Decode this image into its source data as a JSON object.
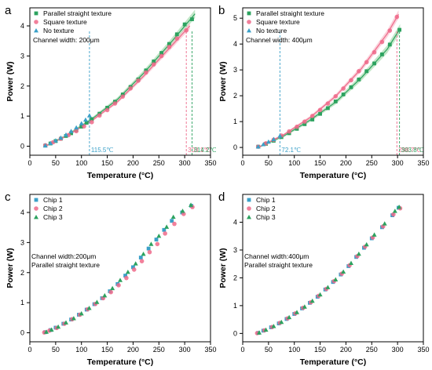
{
  "colors": {
    "green": "#2ca25f",
    "pink": "#ee6a8a",
    "blue": "#3aa0c8",
    "band_green": "#8fd49b",
    "band_pink": "#f7a9bb"
  },
  "chart_data": [
    {
      "panel": "a",
      "type": "scatter",
      "xlabel": "Temperature (°C)",
      "ylabel": "Power (W)",
      "xlim": [
        0,
        350
      ],
      "ylim": [
        -0.3,
        4.6
      ],
      "xticks": [
        0,
        50,
        100,
        150,
        200,
        250,
        300,
        350
      ],
      "yticks": [
        0,
        1,
        2,
        3,
        4
      ],
      "legend_position": "top-left",
      "annotation": "Channel width: 200μm",
      "series": [
        {
          "name": "Parallel straight texture",
          "color": "green",
          "marker": "square",
          "x": [
            30,
            40,
            50,
            60,
            70,
            80,
            90,
            100,
            110,
            120,
            135,
            150,
            165,
            180,
            195,
            210,
            225,
            240,
            255,
            270,
            285,
            300,
            314.2
          ],
          "y": [
            0.02,
            0.09,
            0.17,
            0.25,
            0.34,
            0.43,
            0.53,
            0.65,
            0.78,
            0.9,
            1.08,
            1.28,
            1.48,
            1.72,
            1.97,
            2.22,
            2.52,
            2.82,
            3.1,
            3.4,
            3.72,
            4.05,
            4.22
          ]
        },
        {
          "name": "Square texture",
          "color": "pink",
          "marker": "circle",
          "x": [
            30,
            45,
            60,
            75,
            90,
            105,
            120,
            135,
            150,
            165,
            180,
            195,
            210,
            225,
            240,
            255,
            270,
            285,
            303.1
          ],
          "y": [
            0.03,
            0.13,
            0.25,
            0.37,
            0.5,
            0.66,
            0.8,
            1.02,
            1.2,
            1.42,
            1.65,
            1.92,
            2.18,
            2.45,
            2.72,
            3.0,
            3.3,
            3.58,
            3.85
          ]
        },
        {
          "name": "No texture",
          "color": "blue",
          "marker": "triangle",
          "x": [
            30,
            40,
            50,
            60,
            70,
            80,
            90,
            100,
            108,
            115.5
          ],
          "y": [
            0.02,
            0.1,
            0.19,
            0.28,
            0.38,
            0.5,
            0.62,
            0.76,
            0.88,
            1.02
          ]
        }
      ],
      "fits": [
        {
          "color": "green",
          "x": [
            30,
            70,
            120,
            170,
            220,
            270,
            320
          ],
          "y": [
            0.0,
            0.34,
            0.9,
            1.56,
            2.42,
            3.38,
            4.4
          ],
          "band": 0.1
        },
        {
          "color": "pink",
          "x": [
            30,
            70,
            120,
            170,
            220,
            270,
            310
          ],
          "y": [
            0.0,
            0.33,
            0.85,
            1.48,
            2.32,
            3.25,
            4.0
          ],
          "band": 0.08
        }
      ],
      "markers": [
        {
          "x": 115.5,
          "label": "115.5℃",
          "color": "blue"
        },
        {
          "x": 303.1,
          "label": "303.1℃",
          "color": "pink"
        },
        {
          "x": 314.2,
          "label": "314.2℃",
          "color": "green"
        }
      ]
    },
    {
      "panel": "b",
      "type": "scatter",
      "xlabel": "Temperature (°C)",
      "ylabel": "Power (W)",
      "xlim": [
        0,
        350
      ],
      "ylim": [
        -0.3,
        5.4
      ],
      "xticks": [
        0,
        50,
        100,
        150,
        200,
        250,
        300,
        350
      ],
      "yticks": [
        0,
        1,
        2,
        3,
        4,
        5
      ],
      "legend_position": "top-left",
      "annotation": "Channel width: 400μm",
      "series": [
        {
          "name": "Parallel straight texture",
          "color": "green",
          "marker": "square",
          "x": [
            30,
            45,
            60,
            75,
            90,
            105,
            120,
            135,
            150,
            165,
            180,
            195,
            210,
            225,
            240,
            255,
            270,
            285,
            303.8
          ],
          "y": [
            0.03,
            0.14,
            0.26,
            0.4,
            0.55,
            0.72,
            0.9,
            1.08,
            1.3,
            1.52,
            1.78,
            2.05,
            2.33,
            2.63,
            2.95,
            3.25,
            3.6,
            3.98,
            4.55
          ]
        },
        {
          "name": "Square texture",
          "color": "pink",
          "marker": "circle",
          "x": [
            30,
            45,
            60,
            75,
            90,
            105,
            120,
            135,
            150,
            165,
            180,
            195,
            210,
            225,
            240,
            255,
            270,
            285,
            298.7
          ],
          "y": [
            0.03,
            0.16,
            0.3,
            0.46,
            0.62,
            0.8,
            1.0,
            1.22,
            1.45,
            1.7,
            1.98,
            2.28,
            2.6,
            2.95,
            3.3,
            3.68,
            4.08,
            4.52,
            5.05
          ]
        },
        {
          "name": "No texture",
          "color": "blue",
          "marker": "triangle",
          "x": [
            30,
            40,
            50,
            60,
            72.1
          ],
          "y": [
            0.03,
            0.12,
            0.22,
            0.32,
            0.45
          ]
        }
      ],
      "fits": [
        {
          "color": "green",
          "x": [
            30,
            80,
            130,
            180,
            230,
            280,
            305
          ],
          "y": [
            0.0,
            0.45,
            1.05,
            1.75,
            2.7,
            3.8,
            4.6
          ],
          "band": 0.12
        },
        {
          "color": "pink",
          "x": [
            30,
            80,
            130,
            180,
            230,
            280,
            302
          ],
          "y": [
            0.0,
            0.5,
            1.15,
            1.98,
            3.05,
            4.4,
            5.15
          ],
          "band": 0.1
        }
      ],
      "markers": [
        {
          "x": 72.1,
          "label": "72.1℃",
          "color": "blue"
        },
        {
          "x": 298.7,
          "label": "298.7℃",
          "color": "pink"
        },
        {
          "x": 303.8,
          "label": "303.8℃",
          "color": "green"
        }
      ]
    },
    {
      "panel": "c",
      "type": "scatter",
      "xlabel": "Temperature (°C)",
      "ylabel": "Power (W)",
      "xlim": [
        0,
        350
      ],
      "ylim": [
        -0.3,
        4.6
      ],
      "xticks": [
        0,
        50,
        100,
        150,
        200,
        250,
        300,
        350
      ],
      "yticks": [
        0,
        1,
        2,
        3,
        4
      ],
      "legend_position": "top-left",
      "annotation_lines": [
        "Channel width:200μm",
        "Parallel straight texture"
      ],
      "series": [
        {
          "name": "Chip 1",
          "color": "blue",
          "marker": "square",
          "x": [
            30,
            40,
            50,
            65,
            80,
            95,
            110,
            125,
            140,
            155,
            170,
            185,
            200,
            215,
            230,
            245,
            260,
            275,
            295,
            313
          ],
          "y": [
            0.02,
            0.09,
            0.17,
            0.3,
            0.44,
            0.6,
            0.77,
            0.95,
            1.15,
            1.38,
            1.62,
            1.9,
            2.18,
            2.5,
            2.8,
            3.1,
            3.42,
            3.72,
            4.0,
            4.22
          ]
        },
        {
          "name": "Chip 2",
          "color": "pink",
          "marker": "circle",
          "x": [
            28,
            38,
            52,
            67,
            82,
            97,
            112,
            127,
            142,
            157,
            172,
            187,
            202,
            217,
            232,
            247,
            262,
            280,
            298,
            315
          ],
          "y": [
            0.01,
            0.07,
            0.16,
            0.3,
            0.45,
            0.6,
            0.78,
            0.96,
            1.15,
            1.35,
            1.58,
            1.82,
            2.1,
            2.38,
            2.68,
            2.95,
            3.3,
            3.62,
            3.95,
            4.18
          ]
        },
        {
          "name": "Chip 3",
          "color": "green",
          "marker": "triangle",
          "x": [
            32,
            42,
            55,
            70,
            85,
            100,
            115,
            130,
            145,
            160,
            175,
            190,
            205,
            220,
            235,
            250,
            265,
            278,
            296,
            312
          ],
          "y": [
            0.03,
            0.1,
            0.2,
            0.34,
            0.48,
            0.64,
            0.82,
            1.02,
            1.24,
            1.48,
            1.75,
            2.02,
            2.3,
            2.62,
            2.95,
            3.22,
            3.52,
            3.85,
            4.05,
            4.25
          ]
        }
      ]
    },
    {
      "panel": "d",
      "type": "scatter",
      "xlabel": "Temperature (°C)",
      "ylabel": "Power (W)",
      "xlim": [
        0,
        350
      ],
      "ylim": [
        -0.3,
        5.0
      ],
      "xticks": [
        0,
        50,
        100,
        150,
        200,
        250,
        300,
        350
      ],
      "yticks": [
        0,
        1,
        2,
        3,
        4
      ],
      "legend_position": "top-left",
      "annotation_lines": [
        "Channel width:400μm",
        "Parallel straight texture"
      ],
      "series": [
        {
          "name": "Chip 1",
          "color": "blue",
          "marker": "square",
          "x": [
            30,
            40,
            55,
            70,
            85,
            100,
            115,
            130,
            145,
            160,
            175,
            190,
            205,
            220,
            235,
            250,
            270,
            290,
            302
          ],
          "y": [
            0.02,
            0.1,
            0.22,
            0.36,
            0.52,
            0.7,
            0.9,
            1.1,
            1.32,
            1.58,
            1.85,
            2.12,
            2.42,
            2.75,
            3.08,
            3.42,
            3.82,
            4.25,
            4.52
          ]
        },
        {
          "name": "Chip 2",
          "color": "pink",
          "marker": "circle",
          "x": [
            28,
            42,
            57,
            72,
            87,
            102,
            117,
            132,
            147,
            162,
            177,
            192,
            207,
            222,
            237,
            252,
            272,
            292,
            305
          ],
          "y": [
            0.01,
            0.11,
            0.23,
            0.38,
            0.54,
            0.72,
            0.92,
            1.12,
            1.35,
            1.6,
            1.88,
            2.15,
            2.45,
            2.78,
            3.12,
            3.45,
            3.85,
            4.28,
            4.5
          ]
        },
        {
          "name": "Chip 3",
          "color": "green",
          "marker": "triangle",
          "x": [
            32,
            45,
            60,
            75,
            90,
            105,
            120,
            135,
            150,
            165,
            180,
            195,
            210,
            225,
            240,
            255,
            275,
            295,
            303
          ],
          "y": [
            0.03,
            0.13,
            0.26,
            0.41,
            0.58,
            0.76,
            0.96,
            1.17,
            1.4,
            1.66,
            1.94,
            2.22,
            2.53,
            2.86,
            3.2,
            3.55,
            3.95,
            4.4,
            4.55
          ]
        }
      ]
    }
  ]
}
